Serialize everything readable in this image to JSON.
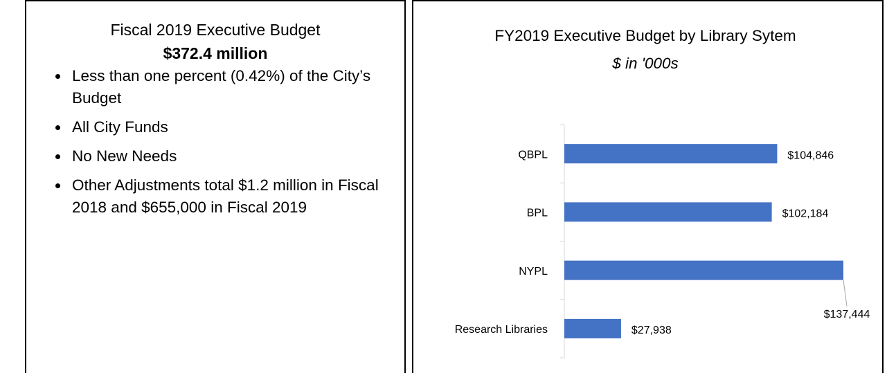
{
  "panel": {
    "title": "Fiscal 2019 Executive Budget",
    "amount": "$372.4 million",
    "bullets": [
      "Less than one percent (0.42%) of the City’s Budget",
      "All City Funds",
      "No New Needs",
      "Other Adjustments total $1.2 million in Fiscal 2018 and $655,000 in Fiscal 2019"
    ]
  },
  "chart_data": {
    "type": "barh",
    "title": "FY2019 Executive Budget by Library Sytem",
    "subtitle": "$ in '000s",
    "categories": [
      "QBPL",
      "BPL",
      "NYPL",
      "Research Libraries"
    ],
    "values": [
      104846,
      102184,
      137444,
      27938
    ],
    "value_labels": [
      "$104,846",
      "$102,184",
      "$137,444",
      "$27,938"
    ],
    "color": "#4472c4"
  }
}
